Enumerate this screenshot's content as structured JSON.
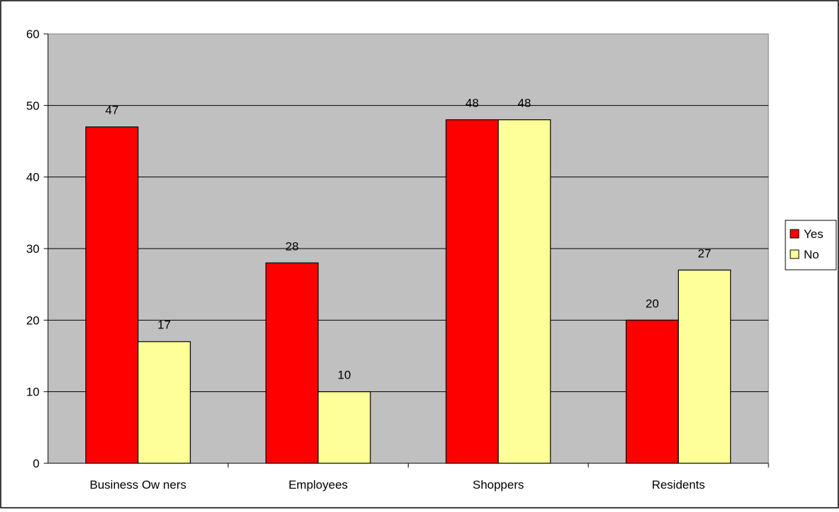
{
  "chart_data": {
    "type": "bar",
    "categories": [
      "Business Ow ners",
      "Employees",
      "Shoppers",
      "Residents"
    ],
    "series": [
      {
        "name": "Yes",
        "values": [
          47,
          28,
          48,
          20
        ],
        "color": "#ff0000"
      },
      {
        "name": "No",
        "values": [
          17,
          10,
          48,
          27
        ],
        "color": "#ffff99"
      }
    ],
    "y_ticks": [
      "0",
      "10",
      "20",
      "30",
      "40",
      "50",
      "60"
    ],
    "ylim": [
      0,
      60
    ],
    "grid": true,
    "legend_position": "right",
    "plot_background": "#c0c0c0",
    "data_labels": true
  }
}
